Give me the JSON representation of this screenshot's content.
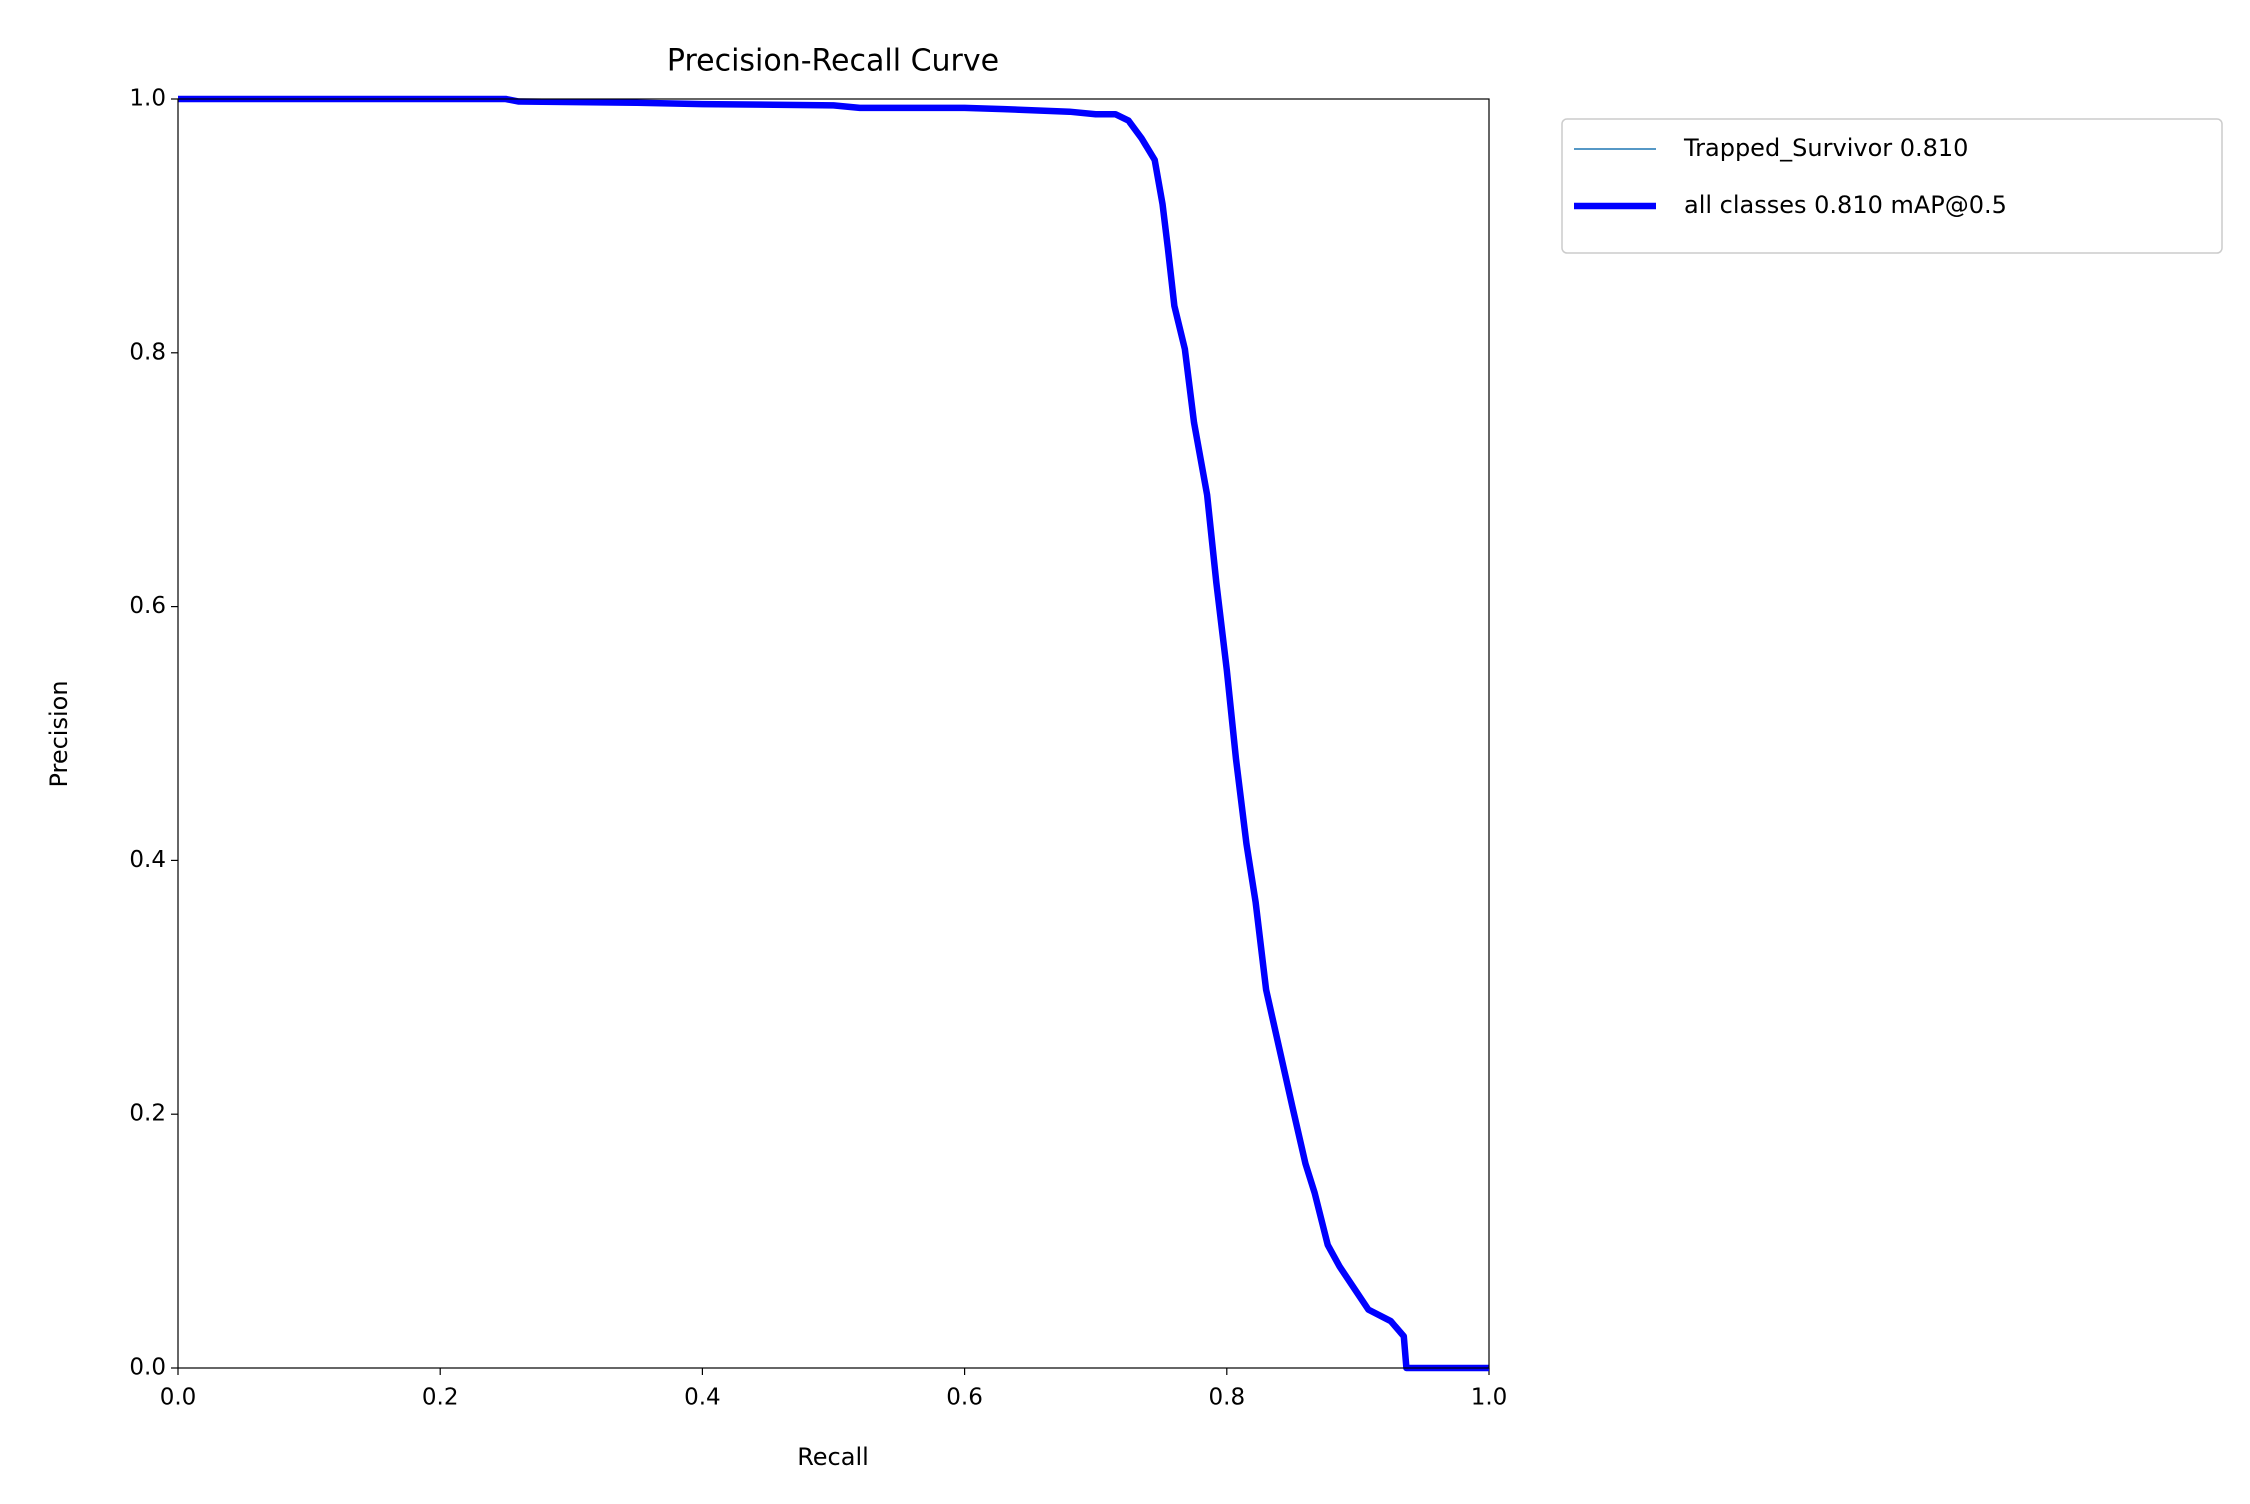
{
  "chart_data": {
    "type": "line",
    "title": "Precision-Recall Curve",
    "x_label": "Recall",
    "y_label": "Precision",
    "xlim": [
      0,
      1
    ],
    "ylim": [
      0,
      1
    ],
    "xticks": [
      {
        "value": 0,
        "label": "0.0"
      },
      0.2,
      0.4,
      0.6,
      0.8,
      {
        "value": 1,
        "label": "1.0"
      }
    ],
    "yticks": [
      {
        "value": 0,
        "label": "0.0"
      },
      0.2,
      0.4,
      0.6,
      0.8,
      {
        "value": 1,
        "label": "1.0"
      }
    ],
    "grid": false,
    "legend_position": "outside-upper-right",
    "x": [
      0,
      0.25,
      0.26,
      0.35,
      0.4,
      0.5,
      0.52,
      0.6,
      0.63,
      0.68,
      0.7,
      0.715,
      0.725,
      0.735,
      0.745,
      0.751,
      0.755,
      0.76,
      0.768,
      0.775,
      0.785,
      0.792,
      0.8,
      0.807,
      0.815,
      0.822,
      0.83,
      0.84,
      0.85,
      0.86,
      0.867,
      0.877,
      0.886,
      0.897,
      0.908,
      0.925,
      0.935,
      0.937,
      1.0
    ],
    "series": [
      {
        "name": "Trapped_Survivor 0.810",
        "color": "#1f77b4",
        "width": 1.5,
        "values": [
          1.0,
          1.0,
          0.998,
          0.997,
          0.996,
          0.995,
          0.993,
          0.993,
          0.992,
          0.99,
          0.988,
          0.988,
          0.983,
          0.969,
          0.952,
          0.917,
          0.883,
          0.837,
          0.803,
          0.745,
          0.688,
          0.619,
          0.55,
          0.48,
          0.413,
          0.367,
          0.298,
          0.252,
          0.206,
          0.161,
          0.138,
          0.097,
          0.08,
          0.063,
          0.046,
          0.037,
          0.025,
          0.0,
          0.0
        ]
      },
      {
        "name": "all classes 0.810 mAP@0.5",
        "color": "#0000ff",
        "width": 6.5,
        "values": [
          1.0,
          1.0,
          0.998,
          0.997,
          0.996,
          0.995,
          0.993,
          0.993,
          0.992,
          0.99,
          0.988,
          0.988,
          0.983,
          0.969,
          0.952,
          0.917,
          0.883,
          0.837,
          0.803,
          0.745,
          0.688,
          0.619,
          0.55,
          0.48,
          0.413,
          0.367,
          0.298,
          0.252,
          0.206,
          0.161,
          0.138,
          0.097,
          0.08,
          0.063,
          0.046,
          0.037,
          0.025,
          0.0,
          0.0
        ]
      }
    ]
  }
}
